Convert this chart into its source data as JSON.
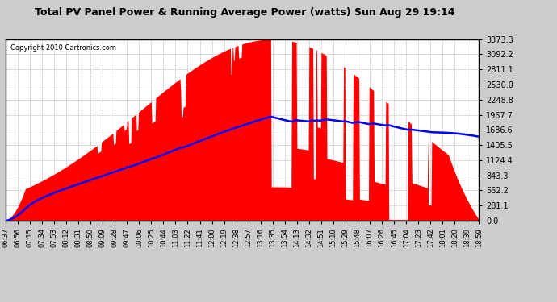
{
  "title": "Total PV Panel Power & Running Average Power (watts) Sun Aug 29 19:14",
  "copyright": "Copyright 2010 Cartronics.com",
  "y_ticks": [
    0.0,
    281.1,
    562.2,
    843.3,
    1124.4,
    1405.5,
    1686.6,
    1967.7,
    2248.8,
    2530.0,
    2811.1,
    3092.2,
    3373.3
  ],
  "y_max": 3373.3,
  "x_labels": [
    "06:37",
    "06:56",
    "07:15",
    "07:34",
    "07:53",
    "08:12",
    "08:31",
    "08:50",
    "09:09",
    "09:28",
    "09:47",
    "10:06",
    "10:25",
    "10:44",
    "11:03",
    "11:22",
    "11:41",
    "12:00",
    "12:19",
    "12:38",
    "12:57",
    "13:16",
    "13:35",
    "13:54",
    "14:13",
    "14:32",
    "14:51",
    "15:10",
    "15:29",
    "15:48",
    "16:07",
    "16:26",
    "16:45",
    "17:04",
    "17:23",
    "17:42",
    "18:01",
    "18:20",
    "18:39",
    "18:59"
  ],
  "pv_color": "#FF0000",
  "avg_color": "#0000FF",
  "bg_color": "#FFFFFF",
  "grid_color": "#999999",
  "border_color": "#000000",
  "fig_bg": "#CCCCCC"
}
